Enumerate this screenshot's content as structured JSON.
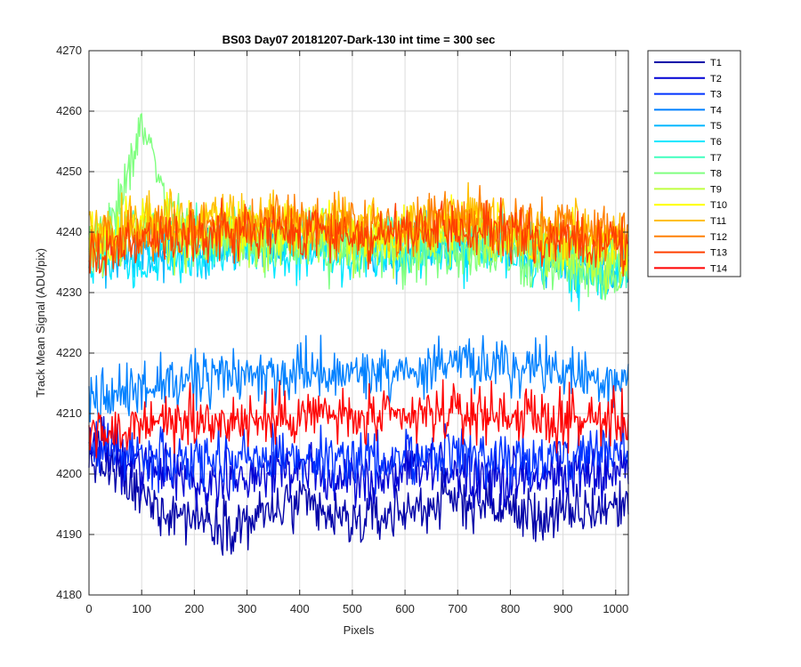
{
  "chart_data": {
    "type": "line",
    "title": "BS03 Day07 20181207-Dark-130 int time = 300 sec",
    "xlabel": "Pixels",
    "ylabel": "Track Mean Signal (ADU/pix)",
    "xlim": [
      0,
      1024
    ],
    "ylim": [
      4180,
      4270
    ],
    "xticks": [
      0,
      100,
      200,
      300,
      400,
      500,
      600,
      700,
      800,
      900,
      1000
    ],
    "yticks": [
      4180,
      4190,
      4200,
      4210,
      4220,
      4230,
      4240,
      4250,
      4260,
      4270
    ],
    "grid": true,
    "legend_position": "outside-top-right",
    "series": [
      {
        "name": "T1",
        "color": "#0000a8",
        "values": [
          4203,
          4200,
          4196,
          4194,
          4193,
          4192,
          4192,
          4194,
          4195,
          4193,
          4192,
          4193,
          4194,
          4195,
          4196,
          4195,
          4194,
          4193,
          4193,
          4194,
          4195
        ]
      },
      {
        "name": "T2",
        "color": "#0000d4",
        "values": [
          4205,
          4203,
          4201,
          4200,
          4199,
          4199,
          4200,
          4200,
          4201,
          4200,
          4199,
          4199,
          4200,
          4201,
          4201,
          4200,
          4199,
          4199,
          4200,
          4200,
          4201
        ]
      },
      {
        "name": "T3",
        "color": "#0033ff",
        "values": [
          4206,
          4204,
          4203,
          4202,
          4202,
          4202,
          4203,
          4203,
          4203,
          4203,
          4202,
          4202,
          4203,
          4203,
          4204,
          4203,
          4202,
          4203,
          4203,
          4203,
          4204
        ]
      },
      {
        "name": "T4",
        "color": "#0080ff",
        "values": [
          4213,
          4213,
          4214,
          4215,
          4215,
          4216,
          4216,
          4216,
          4217,
          4217,
          4217,
          4217,
          4217,
          4217,
          4218,
          4218,
          4218,
          4218,
          4217,
          4216,
          4216
        ]
      },
      {
        "name": "T5",
        "color": "#00b8ff",
        "values": [
          4237,
          4236,
          4236,
          4237,
          4237,
          4238,
          4238,
          4238,
          4238,
          4238,
          4237,
          4237,
          4237,
          4238,
          4238,
          4238,
          4237,
          4236,
          4235,
          4234,
          4234
        ]
      },
      {
        "name": "T6",
        "color": "#00e8ff",
        "values": [
          4236,
          4235,
          4235,
          4236,
          4236,
          4237,
          4237,
          4237,
          4237,
          4237,
          4236,
          4236,
          4236,
          4237,
          4237,
          4237,
          4236,
          4235,
          4234,
          4233,
          4233
        ]
      },
      {
        "name": "T7",
        "color": "#40ffbf",
        "values": [
          4239,
          4240,
          4241,
          4240,
          4240,
          4240,
          4240,
          4240,
          4240,
          4240,
          4239,
          4239,
          4239,
          4240,
          4240,
          4240,
          4239,
          4238,
          4237,
          4236,
          4236
        ]
      },
      {
        "name": "T8",
        "color": "#80ff80",
        "values": [
          4238,
          4243,
          4258,
          4244,
          4239,
          4238,
          4238,
          4238,
          4238,
          4237,
          4237,
          4236,
          4236,
          4237,
          4237,
          4237,
          4236,
          4235,
          4234,
          4233,
          4232
        ]
      },
      {
        "name": "T9",
        "color": "#bfff40",
        "values": [
          4238,
          4239,
          4240,
          4239,
          4239,
          4239,
          4239,
          4239,
          4239,
          4239,
          4238,
          4238,
          4238,
          4239,
          4239,
          4239,
          4238,
          4237,
          4236,
          4236,
          4235
        ]
      },
      {
        "name": "T10",
        "color": "#ffff00",
        "values": [
          4239,
          4240,
          4241,
          4241,
          4241,
          4241,
          4241,
          4241,
          4241,
          4241,
          4240,
          4240,
          4240,
          4241,
          4241,
          4241,
          4240,
          4239,
          4239,
          4238,
          4238
        ]
      },
      {
        "name": "T11",
        "color": "#ffbf00",
        "values": [
          4240,
          4241,
          4241,
          4242,
          4242,
          4242,
          4242,
          4242,
          4242,
          4242,
          4241,
          4241,
          4241,
          4242,
          4242,
          4242,
          4241,
          4241,
          4240,
          4240,
          4239
        ]
      },
      {
        "name": "T12",
        "color": "#ff8000",
        "values": [
          4238,
          4239,
          4240,
          4241,
          4241,
          4241,
          4241,
          4242,
          4242,
          4241,
          4241,
          4241,
          4241,
          4242,
          4242,
          4242,
          4241,
          4241,
          4241,
          4240,
          4240
        ]
      },
      {
        "name": "T13",
        "color": "#ff4000",
        "values": [
          4236,
          4237,
          4238,
          4239,
          4239,
          4240,
          4240,
          4240,
          4240,
          4240,
          4240,
          4239,
          4240,
          4240,
          4240,
          4240,
          4240,
          4239,
          4239,
          4238,
          4238
        ]
      },
      {
        "name": "T14",
        "color": "#ff0000",
        "values": [
          4206,
          4207,
          4208,
          4209,
          4209,
          4209,
          4209,
          4209,
          4210,
          4210,
          4209,
          4209,
          4209,
          4210,
          4210,
          4210,
          4210,
          4209,
          4209,
          4209,
          4209
        ]
      }
    ],
    "x": [
      0,
      50,
      100,
      150,
      200,
      250,
      300,
      350,
      400,
      450,
      500,
      550,
      600,
      650,
      700,
      750,
      800,
      850,
      900,
      950,
      1024
    ]
  }
}
